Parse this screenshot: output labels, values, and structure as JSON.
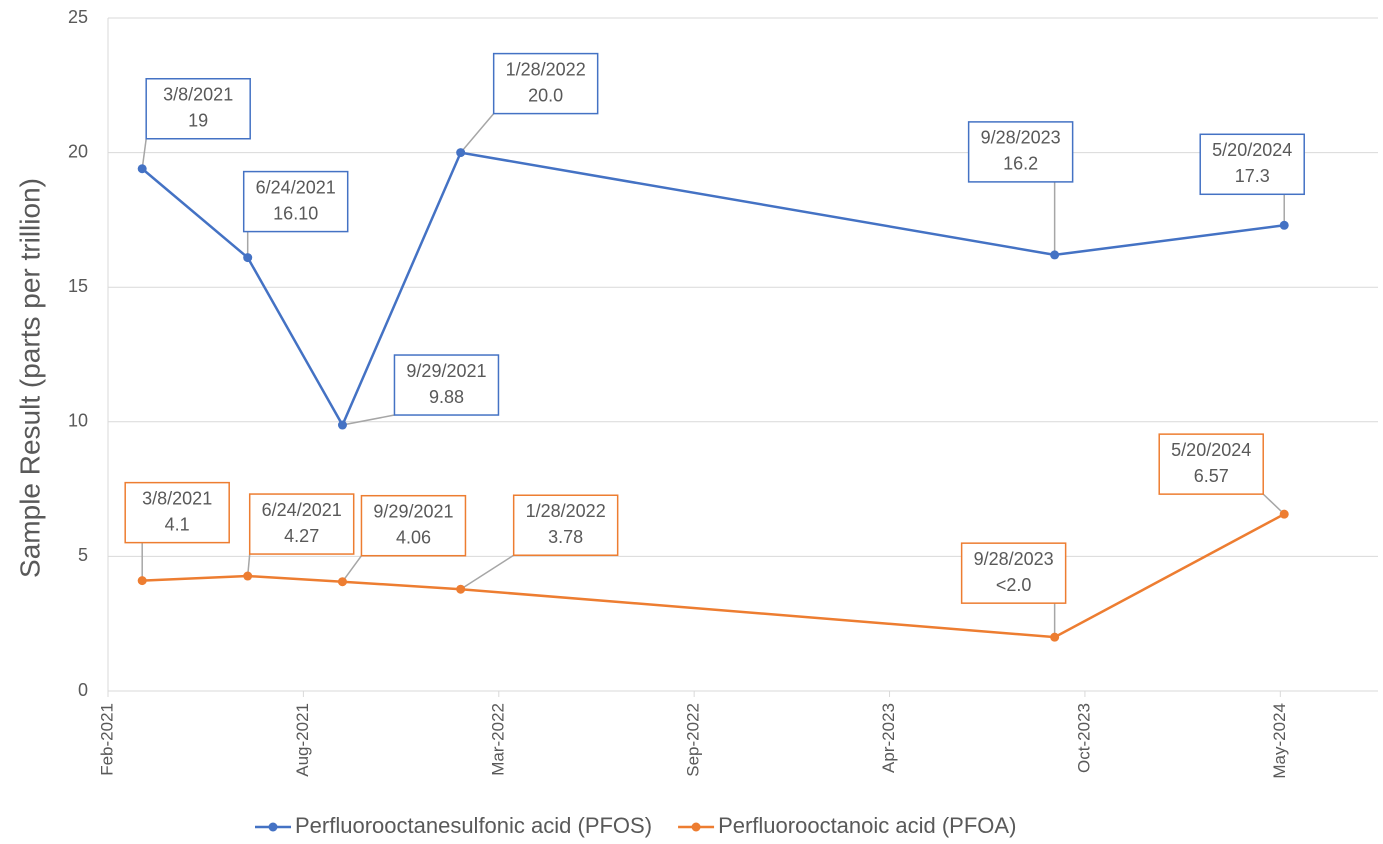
{
  "chart_data": {
    "type": "line",
    "y_axis_label": "Sample Result (parts per trillion)",
    "x": [
      "3/8/2021",
      "6/24/2021",
      "9/29/2021",
      "1/28/2022",
      "9/28/2023",
      "5/20/2024"
    ],
    "series": [
      {
        "name": "Perfluorooctanesulfonic acid (PFOS)",
        "color": "#4472c4",
        "values": [
          19.4,
          16.1,
          9.88,
          20.0,
          16.2,
          17.3
        ],
        "value_labels": [
          "19",
          "16.10",
          "9.88",
          "20.0",
          "16.2",
          "17.3"
        ]
      },
      {
        "name": "Perfluorooctanoic acid (PFOA)",
        "color": "#ed7d31",
        "values": [
          4.1,
          4.27,
          4.06,
          3.78,
          2.0,
          6.57
        ],
        "value_labels": [
          "4.1",
          "4.27",
          "4.06",
          "3.78",
          "<2.0",
          "6.57"
        ]
      }
    ],
    "xlim": [
      "2/1/2021",
      "8/24/2024"
    ],
    "xticks": [
      {
        "value": "2/1/2021",
        "label": "Feb-2021"
      },
      {
        "value": "8/20/2021",
        "label": "Aug-2021"
      },
      {
        "value": "3/8/2022",
        "label": "Mar-2022"
      },
      {
        "value": "9/24/2022",
        "label": "Sep-2022"
      },
      {
        "value": "4/12/2023",
        "label": "Apr-2023"
      },
      {
        "value": "10/29/2023",
        "label": "Oct-2023"
      },
      {
        "value": "5/16/2024",
        "label": "May-2024"
      }
    ],
    "ylim": [
      0,
      25
    ],
    "yticks": [
      0,
      5,
      10,
      15,
      20,
      25
    ],
    "grid": true,
    "legend": "bottom"
  }
}
